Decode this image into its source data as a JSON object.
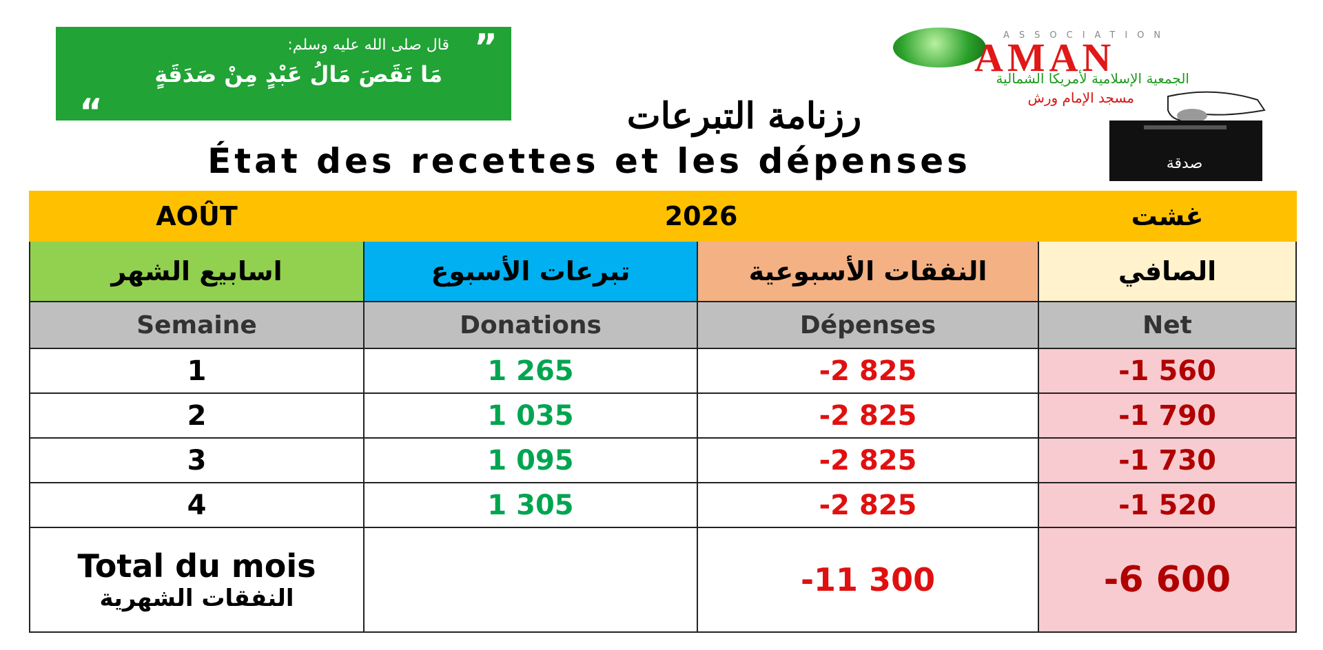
{
  "quote": {
    "open_mark": "”",
    "intro": "قال صلى الله عليه وسلم:",
    "text": "مَا نَقَصَ مَالُ عَبْدٍ مِنْ صَدَقَةٍ",
    "close_mark": "“"
  },
  "logo": {
    "tagline": "ASSOCIATION",
    "name": "AMAN",
    "subtitle": "الجمعية الإسلامية لأمريكا الشمالية",
    "mosque": "مسجد الإمام ورش"
  },
  "header": {
    "title_ar": "رزنامة التبرعات",
    "title_fr": "État des recettes et les dépenses"
  },
  "box_label": "صدقة",
  "table": {
    "month_fr": "AOÛT",
    "year": "2026",
    "month_ar": "غشت",
    "headers_ar": [
      "اسابيع الشهر",
      "تبرعات الأسبوع",
      "النفقات الأسبوعية",
      "الصافي"
    ],
    "headers_fr": [
      "Semaine",
      "Donations",
      "Dépenses",
      "Net"
    ],
    "rows": [
      [
        "1",
        "1 265",
        "-2 825",
        "-1 560"
      ],
      [
        "2",
        "1 035",
        "-2 825",
        "-1 790"
      ],
      [
        "3",
        "1 095",
        "-2 825",
        "-1 730"
      ],
      [
        "4",
        "1 305",
        "-2 825",
        "-1 520"
      ]
    ],
    "total": {
      "label_fr": "Total du mois",
      "label_ar": "النفقات الشهرية",
      "expenses": "-11 300",
      "net": "-6 600"
    }
  }
}
